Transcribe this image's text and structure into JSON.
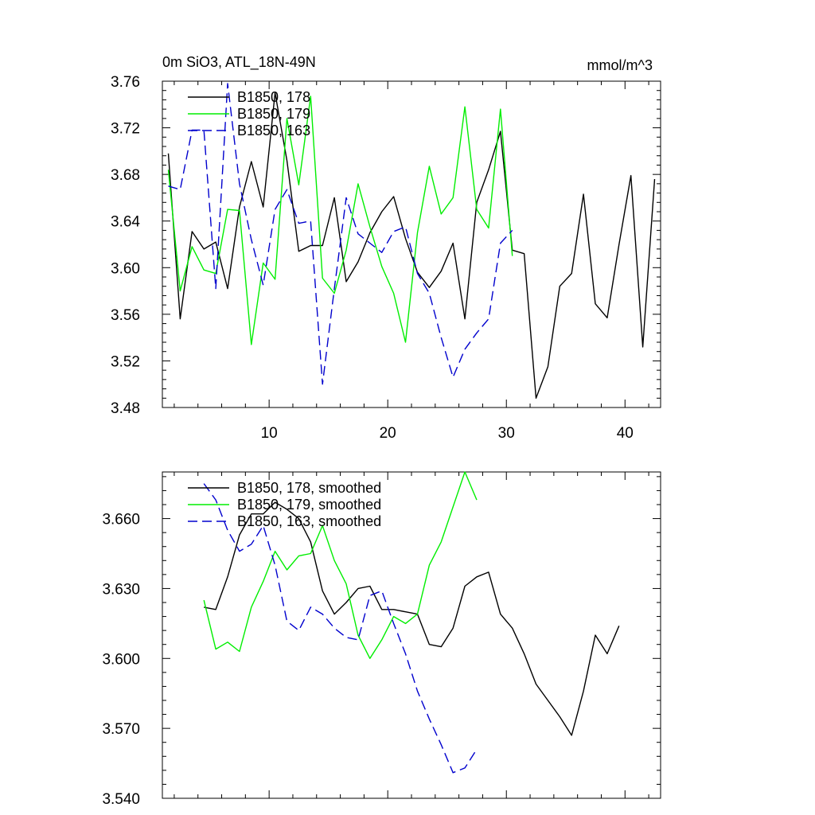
{
  "chart_data": [
    {
      "type": "line",
      "title": "0m SiO3, ATL_18N-49N",
      "units": "mmol/m^3",
      "xlabel": "",
      "ylabel": "",
      "xlim": [
        1,
        43
      ],
      "ylim": [
        3.48,
        3.76
      ],
      "xticks": [
        10,
        20,
        30,
        40
      ],
      "yticks": [
        3.48,
        3.52,
        3.56,
        3.6,
        3.64,
        3.68,
        3.72,
        3.76
      ],
      "ytick_labels": [
        "3.48",
        "3.52",
        "3.56",
        "3.60",
        "3.64",
        "3.68",
        "3.72",
        "3.76"
      ],
      "show_xtick_labels": true,
      "legend_position": "top-left",
      "series": [
        {
          "name": "B1850, 178",
          "color": "#000000",
          "dash": "solid",
          "x": [
            1.5,
            2.5,
            3.5,
            4.5,
            5.5,
            6.5,
            7.5,
            8.5,
            9.5,
            10.5,
            11.5,
            12.5,
            13.5,
            14.5,
            15.5,
            16.5,
            17.5,
            18.5,
            19.5,
            20.5,
            21.5,
            22.5,
            23.5,
            24.5,
            25.5,
            26.5,
            27.5,
            28.5,
            29.5,
            30.5,
            31.5,
            32.5,
            33.5,
            34.5,
            35.5,
            36.5,
            37.5,
            38.5,
            39.5,
            40.5,
            41.5,
            42.5
          ],
          "y": [
            3.698,
            3.556,
            3.631,
            3.616,
            3.622,
            3.582,
            3.652,
            3.691,
            3.652,
            3.75,
            3.692,
            3.614,
            3.619,
            3.619,
            3.66,
            3.588,
            3.605,
            3.63,
            3.648,
            3.661,
            3.625,
            3.596,
            3.583,
            3.597,
            3.621,
            3.556,
            3.656,
            3.684,
            3.717,
            3.615,
            3.612,
            3.488,
            3.515,
            3.584,
            3.595,
            3.663,
            3.569,
            3.557,
            3.62,
            3.679,
            3.532,
            3.676
          ]
        },
        {
          "name": "B1850, 179",
          "color": "#00ee00",
          "dash": "solid",
          "x": [
            1.5,
            2.5,
            3.5,
            4.5,
            5.5,
            6.5,
            7.5,
            8.5,
            9.5,
            10.5,
            11.5,
            12.5,
            13.5,
            14.5,
            15.5,
            16.5,
            17.5,
            18.5,
            19.5,
            20.5,
            21.5,
            22.5,
            23.5,
            24.5,
            25.5,
            26.5,
            27.5,
            28.5,
            29.5,
            30.5
          ],
          "y": [
            3.684,
            3.58,
            3.618,
            3.598,
            3.595,
            3.65,
            3.649,
            3.534,
            3.604,
            3.59,
            3.728,
            3.671,
            3.747,
            3.591,
            3.578,
            3.615,
            3.672,
            3.635,
            3.601,
            3.578,
            3.536,
            3.63,
            3.687,
            3.646,
            3.66,
            3.738,
            3.65,
            3.634,
            3.736,
            3.61
          ]
        },
        {
          "name": "B1850, 163",
          "color": "#0000cd",
          "dash": "dashed",
          "x": [
            1.5,
            2.5,
            3.5,
            4.5,
            5.5,
            6.5,
            7.5,
            8.5,
            9.5,
            10.5,
            11.5,
            12.5,
            13.5,
            14.5,
            15.5,
            16.5,
            17.5,
            18.5,
            19.5,
            20.5,
            21.5,
            22.5,
            23.5,
            24.5,
            25.5,
            26.5,
            27.5,
            28.5,
            29.5,
            30.5
          ],
          "y": [
            3.67,
            3.667,
            3.718,
            3.718,
            3.582,
            3.758,
            3.672,
            3.624,
            3.585,
            3.65,
            3.667,
            3.638,
            3.64,
            3.5,
            3.582,
            3.66,
            3.629,
            3.621,
            3.613,
            3.631,
            3.635,
            3.595,
            3.578,
            3.54,
            3.506,
            3.53,
            3.544,
            3.556,
            3.621,
            3.632
          ]
        }
      ]
    },
    {
      "type": "line",
      "title": "",
      "xlabel": "",
      "ylabel": "",
      "xlim": [
        1,
        43
      ],
      "ylim": [
        3.54,
        3.68
      ],
      "xticks": [
        10,
        20,
        30,
        40
      ],
      "yticks": [
        3.54,
        3.57,
        3.6,
        3.63,
        3.66
      ],
      "ytick_labels": [
        "3.540",
        "3.570",
        "3.600",
        "3.630",
        "3.660"
      ],
      "show_xtick_labels": false,
      "legend_position": "top-left",
      "series": [
        {
          "name": "B1850, 178, smoothed",
          "color": "#000000",
          "dash": "solid",
          "x": [
            4.5,
            5.5,
            6.5,
            7.5,
            8.5,
            9.5,
            10.5,
            11.5,
            12.5,
            13.5,
            14.5,
            15.5,
            16.5,
            17.5,
            18.5,
            19.5,
            20.5,
            21.5,
            22.5,
            23.5,
            24.5,
            25.5,
            26.5,
            27.5,
            28.5,
            29.5,
            30.5,
            31.5,
            32.5,
            33.5,
            34.5,
            35.5,
            36.5,
            37.5,
            38.5,
            39.5
          ],
          "y": [
            3.622,
            3.621,
            3.635,
            3.653,
            3.662,
            3.662,
            3.667,
            3.664,
            3.66,
            3.65,
            3.629,
            3.619,
            3.624,
            3.63,
            3.631,
            3.621,
            3.621,
            3.62,
            3.619,
            3.606,
            3.605,
            3.613,
            3.631,
            3.635,
            3.637,
            3.619,
            3.613,
            3.602,
            3.589,
            3.582,
            3.575,
            3.567,
            3.586,
            3.61,
            3.602,
            3.614
          ]
        },
        {
          "name": "B1850, 179, smoothed",
          "color": "#00ee00",
          "dash": "solid",
          "x": [
            4.5,
            5.5,
            6.5,
            7.5,
            8.5,
            9.5,
            10.5,
            11.5,
            12.5,
            13.5,
            14.5,
            15.5,
            16.5,
            17.5,
            18.5,
            19.5,
            20.5,
            21.5,
            22.5,
            23.5,
            24.5,
            25.5,
            26.5,
            27.5
          ],
          "y": [
            3.625,
            3.604,
            3.607,
            3.603,
            3.622,
            3.633,
            3.646,
            3.638,
            3.644,
            3.645,
            3.657,
            3.642,
            3.632,
            3.61,
            3.6,
            3.608,
            3.618,
            3.615,
            3.619,
            3.64,
            3.65,
            3.665,
            3.68,
            3.668
          ]
        },
        {
          "name": "B1850, 163, smoothed",
          "color": "#0000cd",
          "dash": "dashed",
          "x": [
            4.5,
            5.5,
            6.5,
            7.5,
            8.5,
            9.5,
            10.5,
            11.5,
            12.5,
            13.5,
            14.5,
            15.5,
            16.5,
            17.5,
            18.5,
            19.5,
            20.5,
            21.5,
            22.5,
            23.5,
            24.5,
            25.5,
            26.5,
            27.5
          ],
          "y": [
            3.675,
            3.668,
            3.655,
            3.646,
            3.649,
            3.657,
            3.64,
            3.616,
            3.612,
            3.622,
            3.619,
            3.613,
            3.609,
            3.608,
            3.627,
            3.629,
            3.615,
            3.602,
            3.586,
            3.574,
            3.563,
            3.551,
            3.553,
            3.561
          ]
        }
      ]
    }
  ]
}
